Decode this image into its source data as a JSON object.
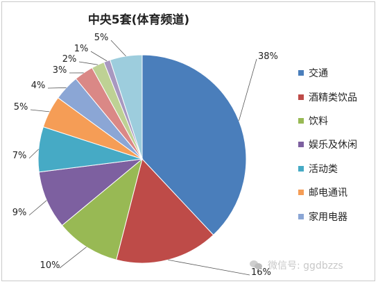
{
  "chart_data": {
    "type": "pie",
    "title": "中央5套(体育频道)",
    "categories": [
      "交通",
      "酒精类饮品",
      "饮料",
      "娱乐及休闲",
      "活动类",
      "邮电通讯",
      "家用电器",
      "",
      "",
      "",
      ""
    ],
    "values": [
      38,
      16,
      10,
      9,
      7,
      5,
      4,
      3,
      2,
      1,
      5
    ],
    "labels": [
      "38%",
      "16%",
      "10%",
      "9%",
      "7%",
      "5%",
      "4%",
      "3%",
      "2%",
      "1%",
      "5%"
    ],
    "colors": [
      "#4A7EBB",
      "#BE4B48",
      "#98B954",
      "#7D60A0",
      "#46AAC5",
      "#F59D56",
      "#8BA6D5",
      "#DA8886",
      "#BED194",
      "#A898C0",
      "#9DCDDD"
    ],
    "legend_position": "right"
  },
  "watermark": "微信号: ggdbzzs"
}
